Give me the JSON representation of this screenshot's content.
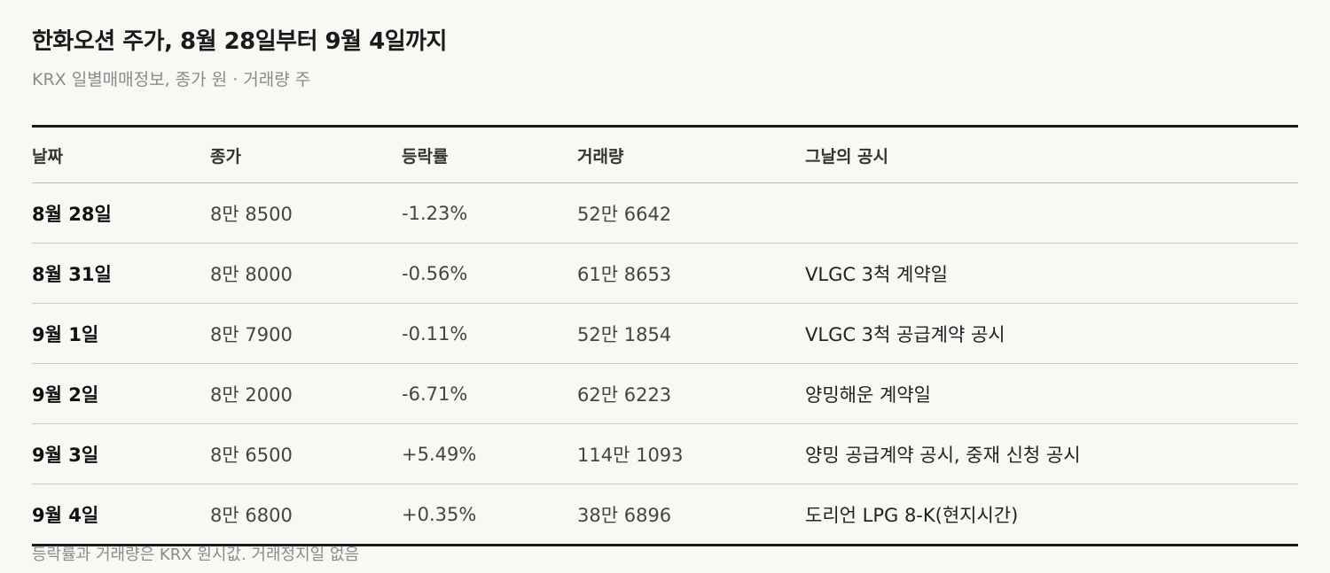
{
  "header": {
    "title": "한화오션 주가, 8월 28일부터 9월 4일까지",
    "subtitle": "KRX 일별매매정보, 종가 원 · 거래량 주"
  },
  "table": {
    "columns": [
      "날짜",
      "종가",
      "등락률",
      "거래량",
      "그날의 공시"
    ],
    "rows": [
      [
        "8월 28일",
        "8만 8500",
        "-1.23%",
        "52만 6642",
        null
      ],
      [
        "8월 31일",
        "8만 8000",
        "-0.56%",
        "61만 8653",
        "VLGC 3척 계약일"
      ],
      [
        "9월 1일",
        "8만 7900",
        "-0.11%",
        "52만 1854",
        "VLGC 3척 공급계약 공시"
      ],
      [
        "9월 2일",
        "8만 2000",
        "-6.71%",
        "62만 6223",
        "양밍해운 계약일"
      ],
      [
        "9월 3일",
        "8만 6500",
        "+5.49%",
        "114만 1093",
        "양밍 공급계약 공시, 중재 신청 공시"
      ],
      [
        "9월 4일",
        "8만 6800",
        "+0.35%",
        "38만 6896",
        "도리언 LPG 8-K(현지시간)"
      ]
    ]
  },
  "footnote": "등락률과 거래량은 KRX 원시값. 거래정지일 없음"
}
